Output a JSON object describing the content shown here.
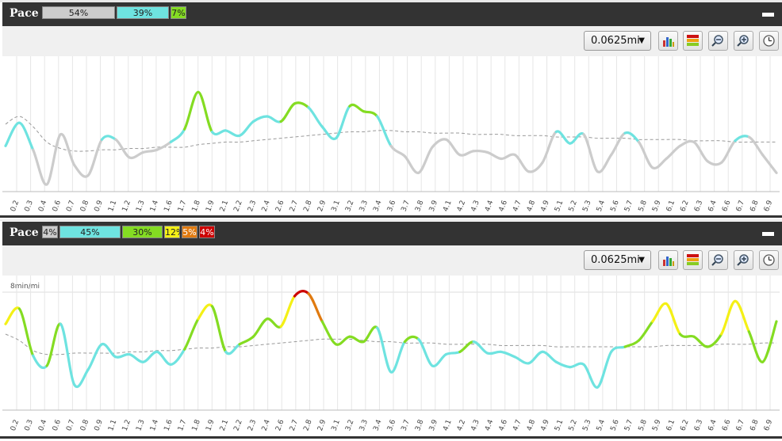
{
  "panels": [
    {
      "title": "Pace",
      "zone_bar": [
        {
          "label": "54%",
          "color": "#cccccc"
        },
        {
          "label": "39%",
          "color": "#6ee3e0"
        },
        {
          "label": "7%",
          "color": "#84dc22"
        }
      ],
      "distance_select": "0.0625mi"
    },
    {
      "title": "Pace",
      "zone_bar": [
        {
          "label": "4%",
          "color": "#cccccc"
        },
        {
          "label": "45%",
          "color": "#6ee3e0"
        },
        {
          "label": "30%",
          "color": "#84dc22"
        },
        {
          "label": "12%",
          "color": "#f4f016"
        },
        {
          "label": "5%",
          "color": "#e07a10"
        },
        {
          "label": "4%",
          "color": "#cc0000"
        }
      ],
      "distance_select": "0.0625mi"
    }
  ],
  "toolbar_icons": [
    "bar-chart-icon",
    "color-zones-icon",
    "zoom-out-icon",
    "zoom-in-icon",
    "clock-icon"
  ],
  "chart_data": [
    {
      "type": "line",
      "x_ticks": [
        "0.2",
        "0.3",
        "0.4",
        "0.6",
        "0.7",
        "0.8",
        "0.9",
        "1.1",
        "1.2",
        "1.3",
        "1.4",
        "1.6",
        "1.7",
        "1.8",
        "1.9",
        "2.1",
        "2.2",
        "2.3",
        "2.4",
        "2.6",
        "2.7",
        "2.8",
        "2.9",
        "3.1",
        "3.2",
        "3.3",
        "3.4",
        "3.6",
        "3.7",
        "3.8",
        "3.9",
        "4.1",
        "4.2",
        "4.3",
        "4.4",
        "4.6",
        "4.7",
        "4.8",
        "4.9",
        "5.1",
        "5.2",
        "5.3",
        "5.4",
        "5.6",
        "5.7",
        "5.8",
        "5.9",
        "6.1",
        "6.2",
        "6.3",
        "6.4",
        "6.6",
        "6.7",
        "6.8",
        "6.9"
      ],
      "xlabel": "",
      "ylabel": "",
      "grid": "vertical",
      "series": [
        {
          "style": "solid, zone-colored",
          "values": [
            0.35,
            0.53,
            0.32,
            0.05,
            0.44,
            0.2,
            0.12,
            0.4,
            0.4,
            0.26,
            0.3,
            0.32,
            0.38,
            0.48,
            0.77,
            0.46,
            0.47,
            0.43,
            0.54,
            0.58,
            0.54,
            0.68,
            0.65,
            0.5,
            0.41,
            0.66,
            0.62,
            0.58,
            0.35,
            0.27,
            0.14,
            0.34,
            0.4,
            0.28,
            0.31,
            0.3,
            0.25,
            0.28,
            0.15,
            0.22,
            0.46,
            0.37,
            0.44,
            0.15,
            0.28,
            0.45,
            0.38,
            0.18,
            0.25,
            0.35,
            0.38,
            0.23,
            0.22,
            0.39,
            0.42,
            0.28,
            0.14
          ]
        },
        {
          "style": "dashed, gray",
          "values": [
            0.52,
            0.58,
            0.5,
            0.38,
            0.33,
            0.31,
            0.31,
            0.32,
            0.32,
            0.33,
            0.33,
            0.34,
            0.34,
            0.34,
            0.36,
            0.37,
            0.38,
            0.38,
            0.39,
            0.4,
            0.41,
            0.42,
            0.43,
            0.44,
            0.45,
            0.46,
            0.46,
            0.47,
            0.47,
            0.46,
            0.46,
            0.45,
            0.45,
            0.45,
            0.44,
            0.44,
            0.44,
            0.43,
            0.43,
            0.43,
            0.42,
            0.42,
            0.42,
            0.41,
            0.41,
            0.41,
            0.4,
            0.4,
            0.4,
            0.4,
            0.39,
            0.39,
            0.39,
            0.38,
            0.38,
            0.38,
            0.38
          ]
        }
      ]
    },
    {
      "type": "line",
      "x_ticks": [
        "0.2",
        "0.3",
        "0.4",
        "0.6",
        "0.7",
        "0.8",
        "0.9",
        "1.1",
        "1.2",
        "1.3",
        "1.4",
        "1.6",
        "1.7",
        "1.8",
        "1.9",
        "2.1",
        "2.2",
        "2.3",
        "2.4",
        "2.6",
        "2.7",
        "2.8",
        "2.9",
        "3.1",
        "3.2",
        "3.3",
        "3.4",
        "3.6",
        "3.7",
        "3.8",
        "3.9",
        "4.1",
        "4.2",
        "4.3",
        "4.4",
        "4.6",
        "4.7",
        "4.8",
        "4.9",
        "5.1",
        "5.2",
        "5.3",
        "5.4",
        "5.6",
        "5.7",
        "5.8",
        "5.9",
        "6.1",
        "6.2",
        "6.3",
        "6.4",
        "6.6",
        "6.7",
        "6.8",
        "6.9"
      ],
      "ylabel": "8min/mi",
      "grid": "vertical",
      "series": [
        {
          "style": "solid, zone-colored",
          "values": [
            0.68,
            0.8,
            0.43,
            0.35,
            0.68,
            0.2,
            0.32,
            0.52,
            0.42,
            0.44,
            0.38,
            0.46,
            0.36,
            0.48,
            0.72,
            0.82,
            0.46,
            0.52,
            0.58,
            0.72,
            0.66,
            0.9,
            0.92,
            0.7,
            0.52,
            0.58,
            0.54,
            0.65,
            0.3,
            0.54,
            0.56,
            0.35,
            0.44,
            0.46,
            0.54,
            0.45,
            0.46,
            0.42,
            0.37,
            0.46,
            0.38,
            0.34,
            0.36,
            0.18,
            0.46,
            0.5,
            0.55,
            0.7,
            0.84,
            0.6,
            0.58,
            0.5,
            0.6,
            0.86,
            0.62,
            0.38,
            0.7
          ]
        },
        {
          "style": "dashed, gray",
          "values": [
            0.6,
            0.55,
            0.47,
            0.44,
            0.44,
            0.45,
            0.45,
            0.45,
            0.45,
            0.46,
            0.46,
            0.47,
            0.47,
            0.48,
            0.49,
            0.49,
            0.5,
            0.5,
            0.51,
            0.52,
            0.53,
            0.54,
            0.55,
            0.56,
            0.56,
            0.56,
            0.55,
            0.54,
            0.54,
            0.53,
            0.53,
            0.53,
            0.52,
            0.52,
            0.52,
            0.52,
            0.51,
            0.51,
            0.51,
            0.51,
            0.5,
            0.5,
            0.5,
            0.5,
            0.5,
            0.5,
            0.5,
            0.5,
            0.51,
            0.51,
            0.51,
            0.51,
            0.52,
            0.52,
            0.52,
            0.53,
            0.53
          ]
        }
      ]
    }
  ]
}
